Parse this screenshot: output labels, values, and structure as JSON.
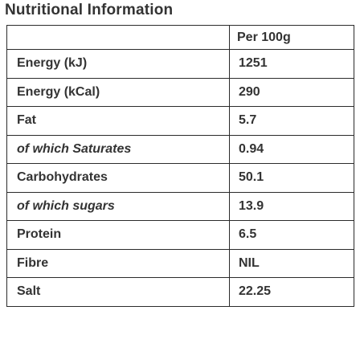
{
  "title": "Nutritional Information",
  "table": {
    "header": [
      "",
      "Per 100g"
    ],
    "rows": [
      {
        "label": "Energy (kJ)",
        "value": "1251",
        "italic": false
      },
      {
        "label": "Energy (kCal)",
        "value": "290",
        "italic": false
      },
      {
        "label": "Fat",
        "value": "5.7",
        "italic": false
      },
      {
        "label": "of which Saturates",
        "value": "0.94",
        "italic": true
      },
      {
        "label": "Carbohydrates",
        "value": "50.1",
        "italic": false
      },
      {
        "label": "of which sugars",
        "value": "13.9",
        "italic": true
      },
      {
        "label": "Protein",
        "value": "6.5",
        "italic": false
      },
      {
        "label": "Fibre",
        "value": "NIL",
        "italic": false
      },
      {
        "label": "Salt",
        "value": "22.25",
        "italic": false
      }
    ]
  }
}
